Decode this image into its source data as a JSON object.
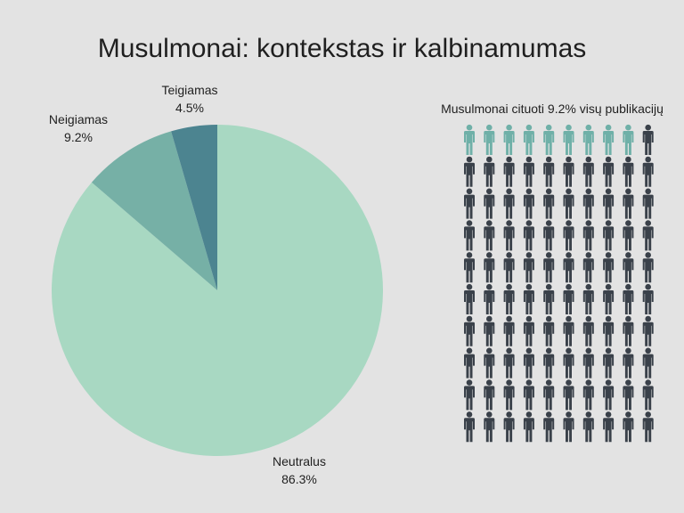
{
  "chart_data": [
    {
      "type": "pie",
      "title": "Musulmonai: kontekstas ir kalbinamumas",
      "slices": [
        {
          "name": "Neutralus",
          "value": 86.3,
          "label": "86.3%",
          "color": "#a8d8c2"
        },
        {
          "name": "Neigiamas",
          "value": 9.2,
          "label": "9.2%",
          "color": "#76b0a6"
        },
        {
          "name": "Teigiamas",
          "value": 4.5,
          "label": "4.5%",
          "color": "#4c8490"
        }
      ]
    },
    {
      "type": "waffle",
      "title": "Musulmonai cituoti 9.2% visų publikacijų",
      "rows": 10,
      "cols": 10,
      "highlighted_count": 9,
      "highlight_color": "#6fb0a8",
      "base_color": "#3a414a"
    }
  ]
}
